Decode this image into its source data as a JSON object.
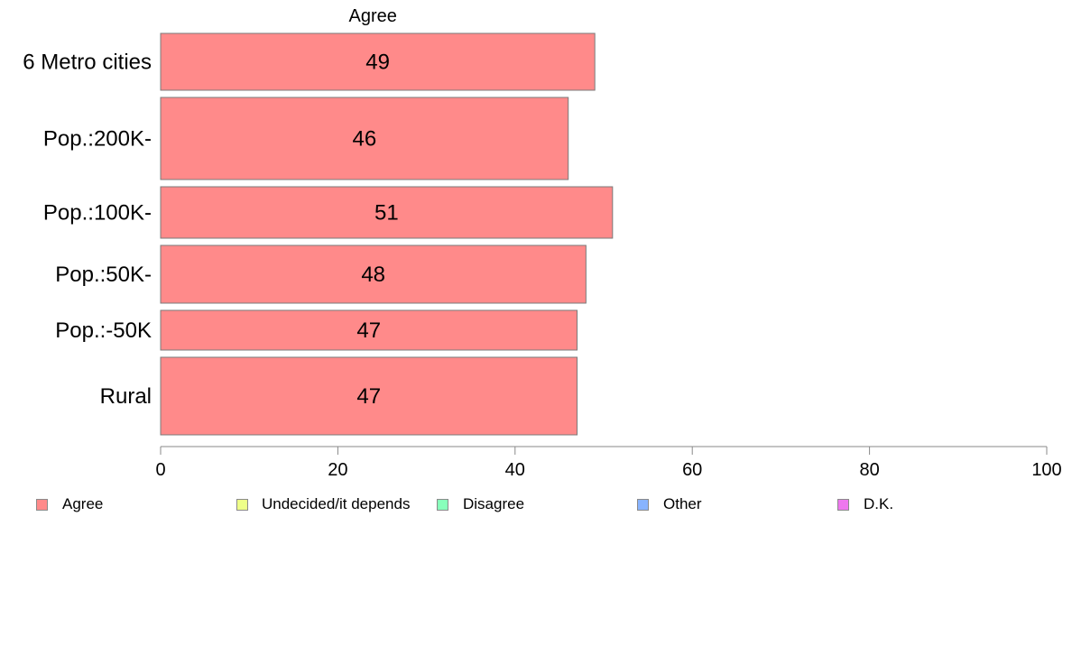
{
  "chart_data": {
    "type": "bar",
    "orientation": "horizontal",
    "stacked": true,
    "segment_title": "Agree",
    "categories": [
      "6 Metro cities",
      "Pop.:200K-",
      "Pop.:100K-",
      "Pop.:50K-",
      "Pop.:-50K",
      "Rural"
    ],
    "series": [
      {
        "name": "Agree",
        "color": "#ff8a8a",
        "values": [
          49,
          46,
          51,
          48,
          47,
          47
        ]
      },
      {
        "name": "Undecided/it depends",
        "color": "#eeff88",
        "values": [
          null,
          null,
          null,
          null,
          null,
          null
        ]
      },
      {
        "name": "Disagree",
        "color": "#88ffbb",
        "values": [
          null,
          null,
          null,
          null,
          null,
          null
        ]
      },
      {
        "name": "Other",
        "color": "#88b4ff",
        "values": [
          null,
          null,
          null,
          null,
          null,
          null
        ]
      },
      {
        "name": "D.K.",
        "color": "#ee77ee",
        "values": [
          null,
          null,
          null,
          null,
          null,
          null
        ]
      }
    ],
    "xlim": [
      0,
      100
    ],
    "xticks": [
      "0",
      "20",
      "40",
      "60",
      "80",
      "100"
    ],
    "grid": false,
    "legend_position": "bottom"
  },
  "legend": {
    "items": [
      {
        "label": "Agree",
        "color": "#ff8a8a"
      },
      {
        "label": "Undecided/it depends",
        "color": "#eeff88"
      },
      {
        "label": "Disagree",
        "color": "#88ffbb"
      },
      {
        "label": "Other",
        "color": "#88b4ff"
      },
      {
        "label": "D.K.",
        "color": "#ee77ee"
      }
    ]
  }
}
